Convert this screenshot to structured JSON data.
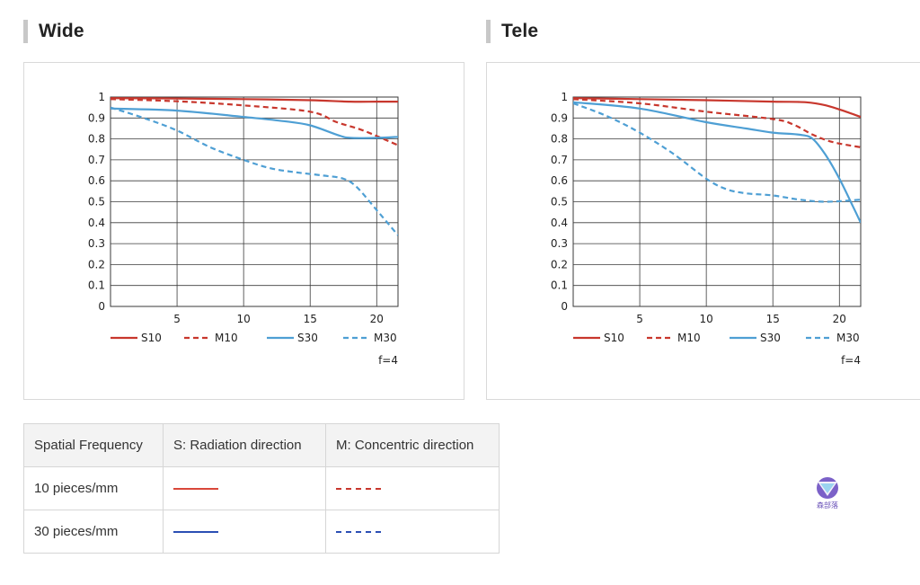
{
  "charts": [
    {
      "id": "wide",
      "heading": "Wide",
      "aperture_note": "f=4",
      "chart_data": {
        "type": "line",
        "xlim": [
          0,
          21.6
        ],
        "ylim": [
          0,
          1
        ],
        "x_ticks": [
          5,
          10,
          15,
          20
        ],
        "y_ticks": [
          0,
          0.1,
          0.2,
          0.3,
          0.4,
          0.5,
          0.6,
          0.7,
          0.8,
          0.9,
          1
        ],
        "y_tick_labels": [
          "0",
          "0.1",
          "0.2",
          "0.3",
          "0.4",
          "0.5",
          "0.6",
          "0.7",
          "0.8",
          "0.9",
          "1"
        ],
        "grid": true,
        "legend_position": "bottom",
        "series": [
          {
            "name": "S10",
            "color": "#c8372d",
            "dash": "solid",
            "x": [
              0,
              5,
              10,
              15,
              18,
              20,
              21.6
            ],
            "y": [
              0.995,
              0.993,
              0.99,
              0.985,
              0.978,
              0.978,
              0.978
            ]
          },
          {
            "name": "M10",
            "color": "#c8372d",
            "dash": "dashed",
            "x": [
              0,
              5,
              10,
              15,
              17,
              19,
              21.6
            ],
            "y": [
              0.99,
              0.98,
              0.96,
              0.93,
              0.88,
              0.84,
              0.77
            ]
          },
          {
            "name": "S30",
            "color": "#4e9fd4",
            "dash": "solid",
            "x": [
              0,
              5,
              10,
              13,
              15,
              17,
              18,
              20,
              21.6
            ],
            "y": [
              0.945,
              0.935,
              0.905,
              0.885,
              0.865,
              0.82,
              0.805,
              0.805,
              0.81
            ]
          },
          {
            "name": "M30",
            "color": "#4e9fd4",
            "dash": "dashed",
            "x": [
              0,
              2.5,
              5,
              7.5,
              10,
              12,
              14,
              16,
              17.5,
              18.5,
              20,
              21.6
            ],
            "y": [
              0.95,
              0.9,
              0.84,
              0.76,
              0.7,
              0.66,
              0.64,
              0.625,
              0.61,
              0.57,
              0.46,
              0.34
            ]
          }
        ]
      }
    },
    {
      "id": "tele",
      "heading": "Tele",
      "aperture_note": "f=4",
      "chart_data": {
        "type": "line",
        "xlim": [
          0,
          21.6
        ],
        "ylim": [
          0,
          1
        ],
        "x_ticks": [
          5,
          10,
          15,
          20
        ],
        "y_ticks": [
          0,
          0.1,
          0.2,
          0.3,
          0.4,
          0.5,
          0.6,
          0.7,
          0.8,
          0.9,
          1
        ],
        "y_tick_labels": [
          "0",
          "0.1",
          "0.2",
          "0.3",
          "0.4",
          "0.5",
          "0.6",
          "0.7",
          "0.8",
          "0.9",
          "1"
        ],
        "grid": true,
        "legend_position": "bottom",
        "series": [
          {
            "name": "S10",
            "color": "#c8372d",
            "dash": "solid",
            "x": [
              0,
              5,
              10,
              15,
              17.5,
              19,
              20.5,
              21.6
            ],
            "y": [
              0.995,
              0.99,
              0.985,
              0.978,
              0.975,
              0.96,
              0.93,
              0.905
            ]
          },
          {
            "name": "M10",
            "color": "#c8372d",
            "dash": "dashed",
            "x": [
              0,
              5,
              10,
              15,
              16.5,
              18,
              19.5,
              21.6
            ],
            "y": [
              0.99,
              0.97,
              0.93,
              0.895,
              0.87,
              0.82,
              0.785,
              0.76
            ]
          },
          {
            "name": "S30",
            "color": "#4e9fd4",
            "dash": "solid",
            "x": [
              0,
              5,
              10,
              13,
              15,
              17,
              18,
              19,
              20,
              21,
              21.6
            ],
            "y": [
              0.975,
              0.945,
              0.88,
              0.85,
              0.83,
              0.82,
              0.8,
              0.72,
              0.61,
              0.48,
              0.4
            ]
          },
          {
            "name": "M30",
            "color": "#4e9fd4",
            "dash": "dashed",
            "x": [
              0,
              2.5,
              5,
              7.5,
              10,
              11.5,
              13,
              15,
              17,
              19,
              21.6
            ],
            "y": [
              0.97,
              0.91,
              0.83,
              0.73,
              0.61,
              0.56,
              0.54,
              0.53,
              0.51,
              0.5,
              0.51
            ]
          }
        ]
      }
    }
  ],
  "table": {
    "headers": [
      "Spatial Frequency",
      "S: Radiation direction",
      "M: Concentric direction"
    ],
    "rows": [
      {
        "label": "10 pieces/mm",
        "s_color": "#d9473a",
        "m_color": "#c8372d"
      },
      {
        "label": "30 pieces/mm",
        "s_color": "#2b4fb4",
        "m_color": "#2b4fb4"
      }
    ]
  },
  "logo_text": "森部落"
}
